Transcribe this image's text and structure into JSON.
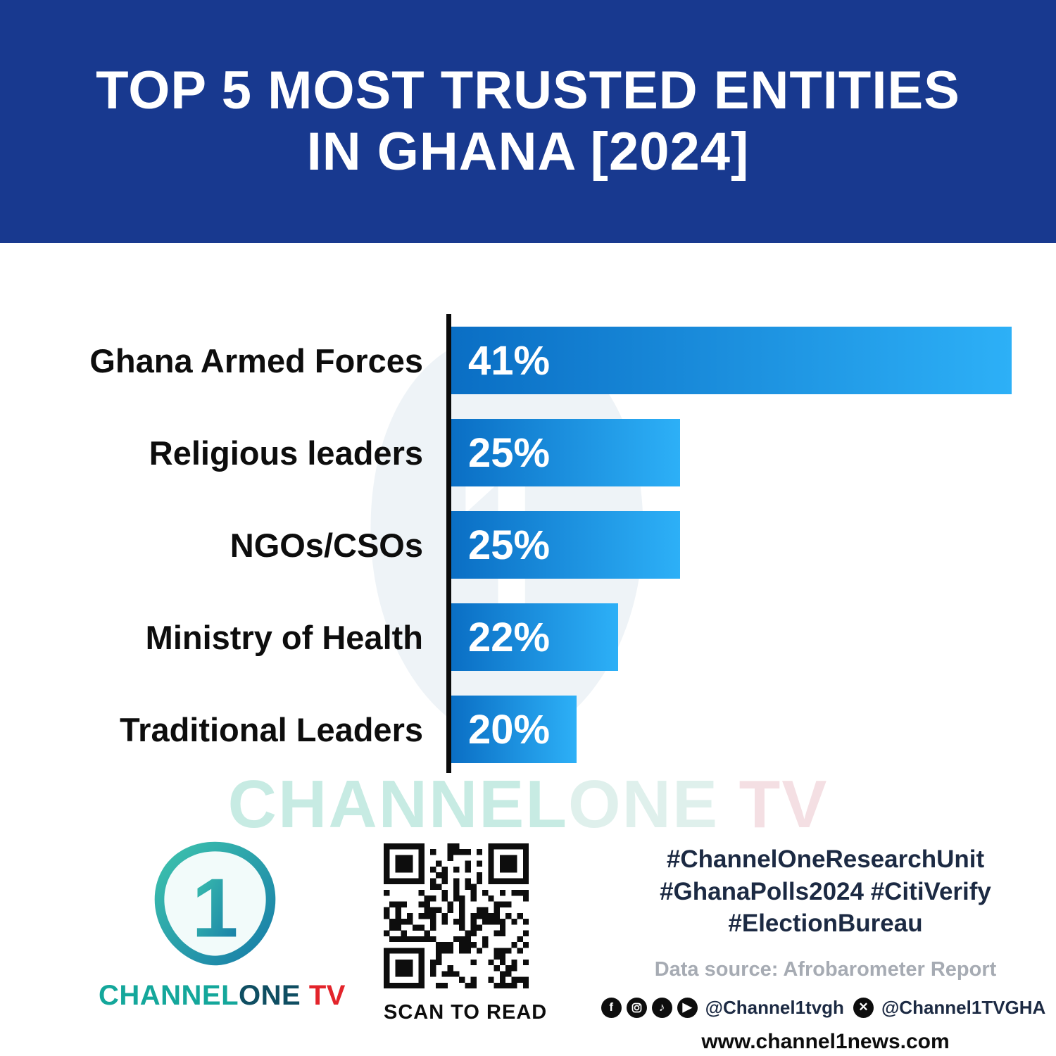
{
  "header": {
    "bg_color": "#18398f",
    "title_line1": "TOP 5 MOST TRUSTED ENTITIES",
    "title_line2": "IN GHANA [2024]"
  },
  "chart_data": {
    "type": "bar",
    "orientation": "horizontal",
    "title": "Top 5 Most Trusted Entities in Ghana [2024]",
    "categories": [
      "Ghana Armed Forces",
      "Religious leaders",
      "NGOs/CSOs",
      "Ministry of Health",
      "Traditional Leaders"
    ],
    "values": [
      41,
      25,
      25,
      22,
      20
    ],
    "value_labels": [
      "41%",
      "25%",
      "25%",
      "22%",
      "20%"
    ],
    "unit": "%",
    "xlim": [
      0,
      41
    ],
    "grid": false,
    "legend": false,
    "axis_color": "#0b0b0b",
    "bar_color_gradient": [
      "#0a6ec4",
      "#2db0f7"
    ],
    "bar_display_widths_pct": [
      100,
      41,
      41,
      30,
      22.5
    ]
  },
  "watermark": {
    "part1": "CHANNEL",
    "part2": "ONE",
    "part3": " TV"
  },
  "footer": {
    "logo": {
      "word_channel": "CHANNEL",
      "word_one": "ONE",
      "word_tv": " TV",
      "teal": "#14a79b",
      "dark_teal": "#0f4e62",
      "red": "#e3242b"
    },
    "qr_caption": "SCAN TO READ",
    "hashtags_line1": "#ChannelOneResearchUnit",
    "hashtags_line2": "#GhanaPolls2024 #CitiVerify",
    "hashtags_line3": "#ElectionBureau",
    "data_source": "Data source: Afrobarometer Report",
    "social_handle_main": "@Channel1tvgh",
    "social_handle_x": "@Channel1TVGHA",
    "website": "www.channel1news.com"
  }
}
